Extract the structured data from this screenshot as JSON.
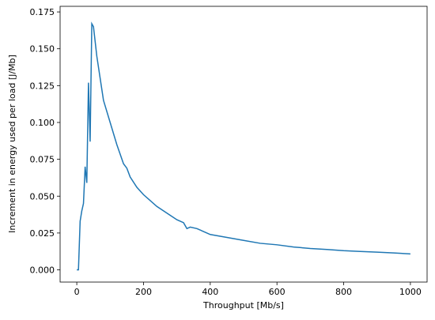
{
  "chart_data": {
    "type": "line",
    "x_label": "Throughput [Mb/s]",
    "y_label": "Increment in energy used per load [J/Mb]",
    "x": [
      0,
      5,
      10,
      15,
      20,
      25,
      30,
      35,
      40,
      45,
      50,
      55,
      60,
      70,
      80,
      100,
      120,
      140,
      150,
      160,
      180,
      200,
      220,
      240,
      260,
      280,
      300,
      320,
      330,
      340,
      360,
      380,
      400,
      450,
      500,
      550,
      600,
      650,
      700,
      750,
      800,
      850,
      900,
      950,
      1000
    ],
    "series": [
      {
        "color": "#1f77b4",
        "values": [
          0,
          0,
          0.033,
          0.04,
          0.045,
          0.07,
          0.059,
          0.127,
          0.087,
          0.167,
          0.165,
          0.155,
          0.145,
          0.13,
          0.115,
          0.1,
          0.085,
          0.072,
          0.069,
          0.063,
          0.056,
          0.051,
          0.047,
          0.043,
          0.04,
          0.037,
          0.034,
          0.032,
          0.028,
          0.029,
          0.028,
          0.026,
          0.024,
          0.022,
          0.02,
          0.018,
          0.017,
          0.0155,
          0.0145,
          0.0138,
          0.013,
          0.0125,
          0.012,
          0.0115,
          0.0108
        ]
      }
    ],
    "xlim": [
      -50,
      1050
    ],
    "ylim": [
      -0.0083,
      0.1788
    ],
    "xticks": [
      0,
      200,
      400,
      600,
      800,
      1000
    ],
    "yticks": [
      {
        "value": 0,
        "label": "0.000"
      },
      {
        "value": 0.025,
        "label": "0.025"
      },
      {
        "value": 0.05,
        "label": "0.050"
      },
      {
        "value": 0.075,
        "label": "0.075"
      },
      {
        "value": 0.1,
        "label": "0.100"
      },
      {
        "value": 0.125,
        "label": "0.125"
      },
      {
        "value": 0.15,
        "label": "0.150"
      },
      {
        "value": 0.175,
        "label": "0.175"
      }
    ]
  }
}
